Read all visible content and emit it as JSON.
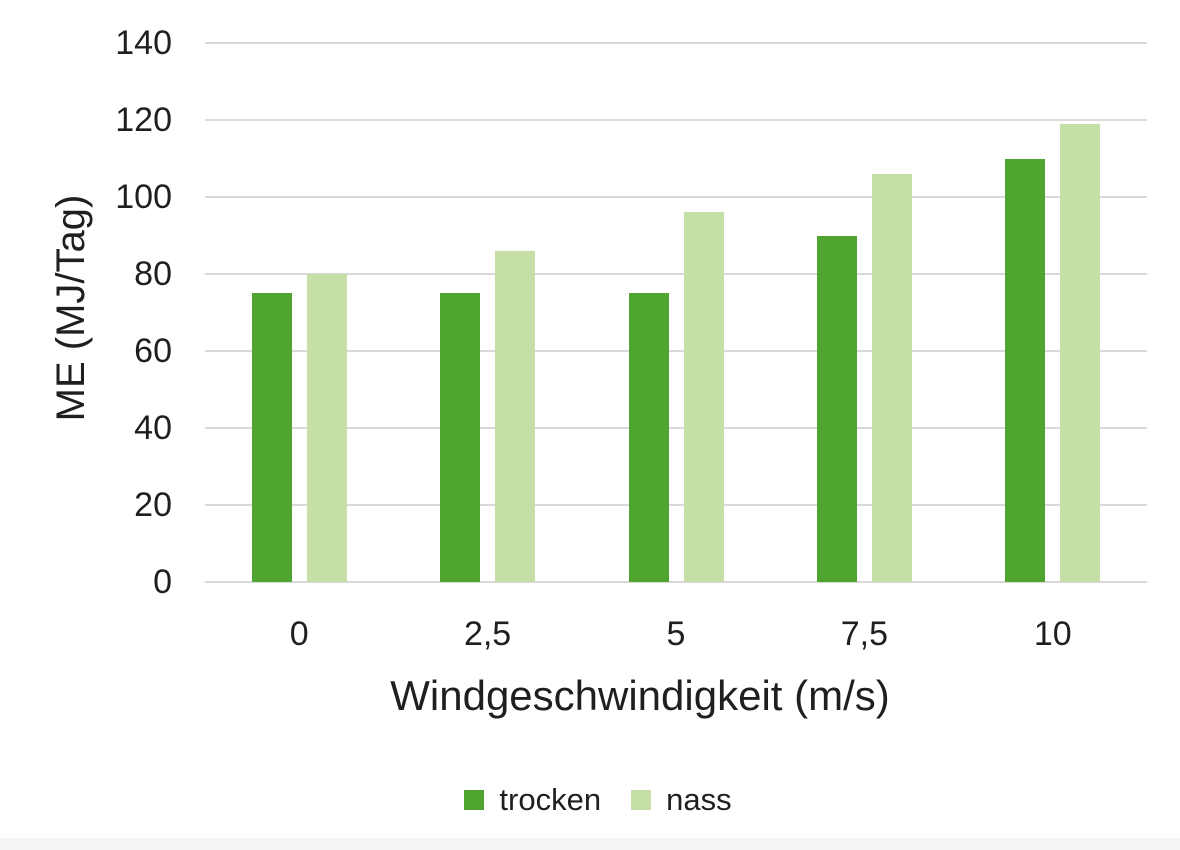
{
  "chart_data": {
    "type": "bar",
    "title": "",
    "categories": [
      "0",
      "2,5",
      "5",
      "7,5",
      "10"
    ],
    "series": [
      {
        "name": "trocken",
        "color": "#4fa52f",
        "values": [
          75,
          75,
          75,
          90,
          110
        ]
      },
      {
        "name": "nass",
        "color": "#c6dfa6",
        "values": [
          80,
          86,
          96,
          106,
          119
        ]
      }
    ],
    "xlabel": "Windgeschwindigkeit (m/s)",
    "ylabel": "ME (MJ/Tag)",
    "ylim": [
      0,
      140
    ],
    "yticks": [
      0,
      20,
      40,
      60,
      80,
      100,
      120,
      140
    ],
    "grid": true,
    "legend_position": "bottom",
    "gridline_color": "#d9d9d9",
    "axis_text_color": "#1f1f1f",
    "background": "#ffffff"
  }
}
